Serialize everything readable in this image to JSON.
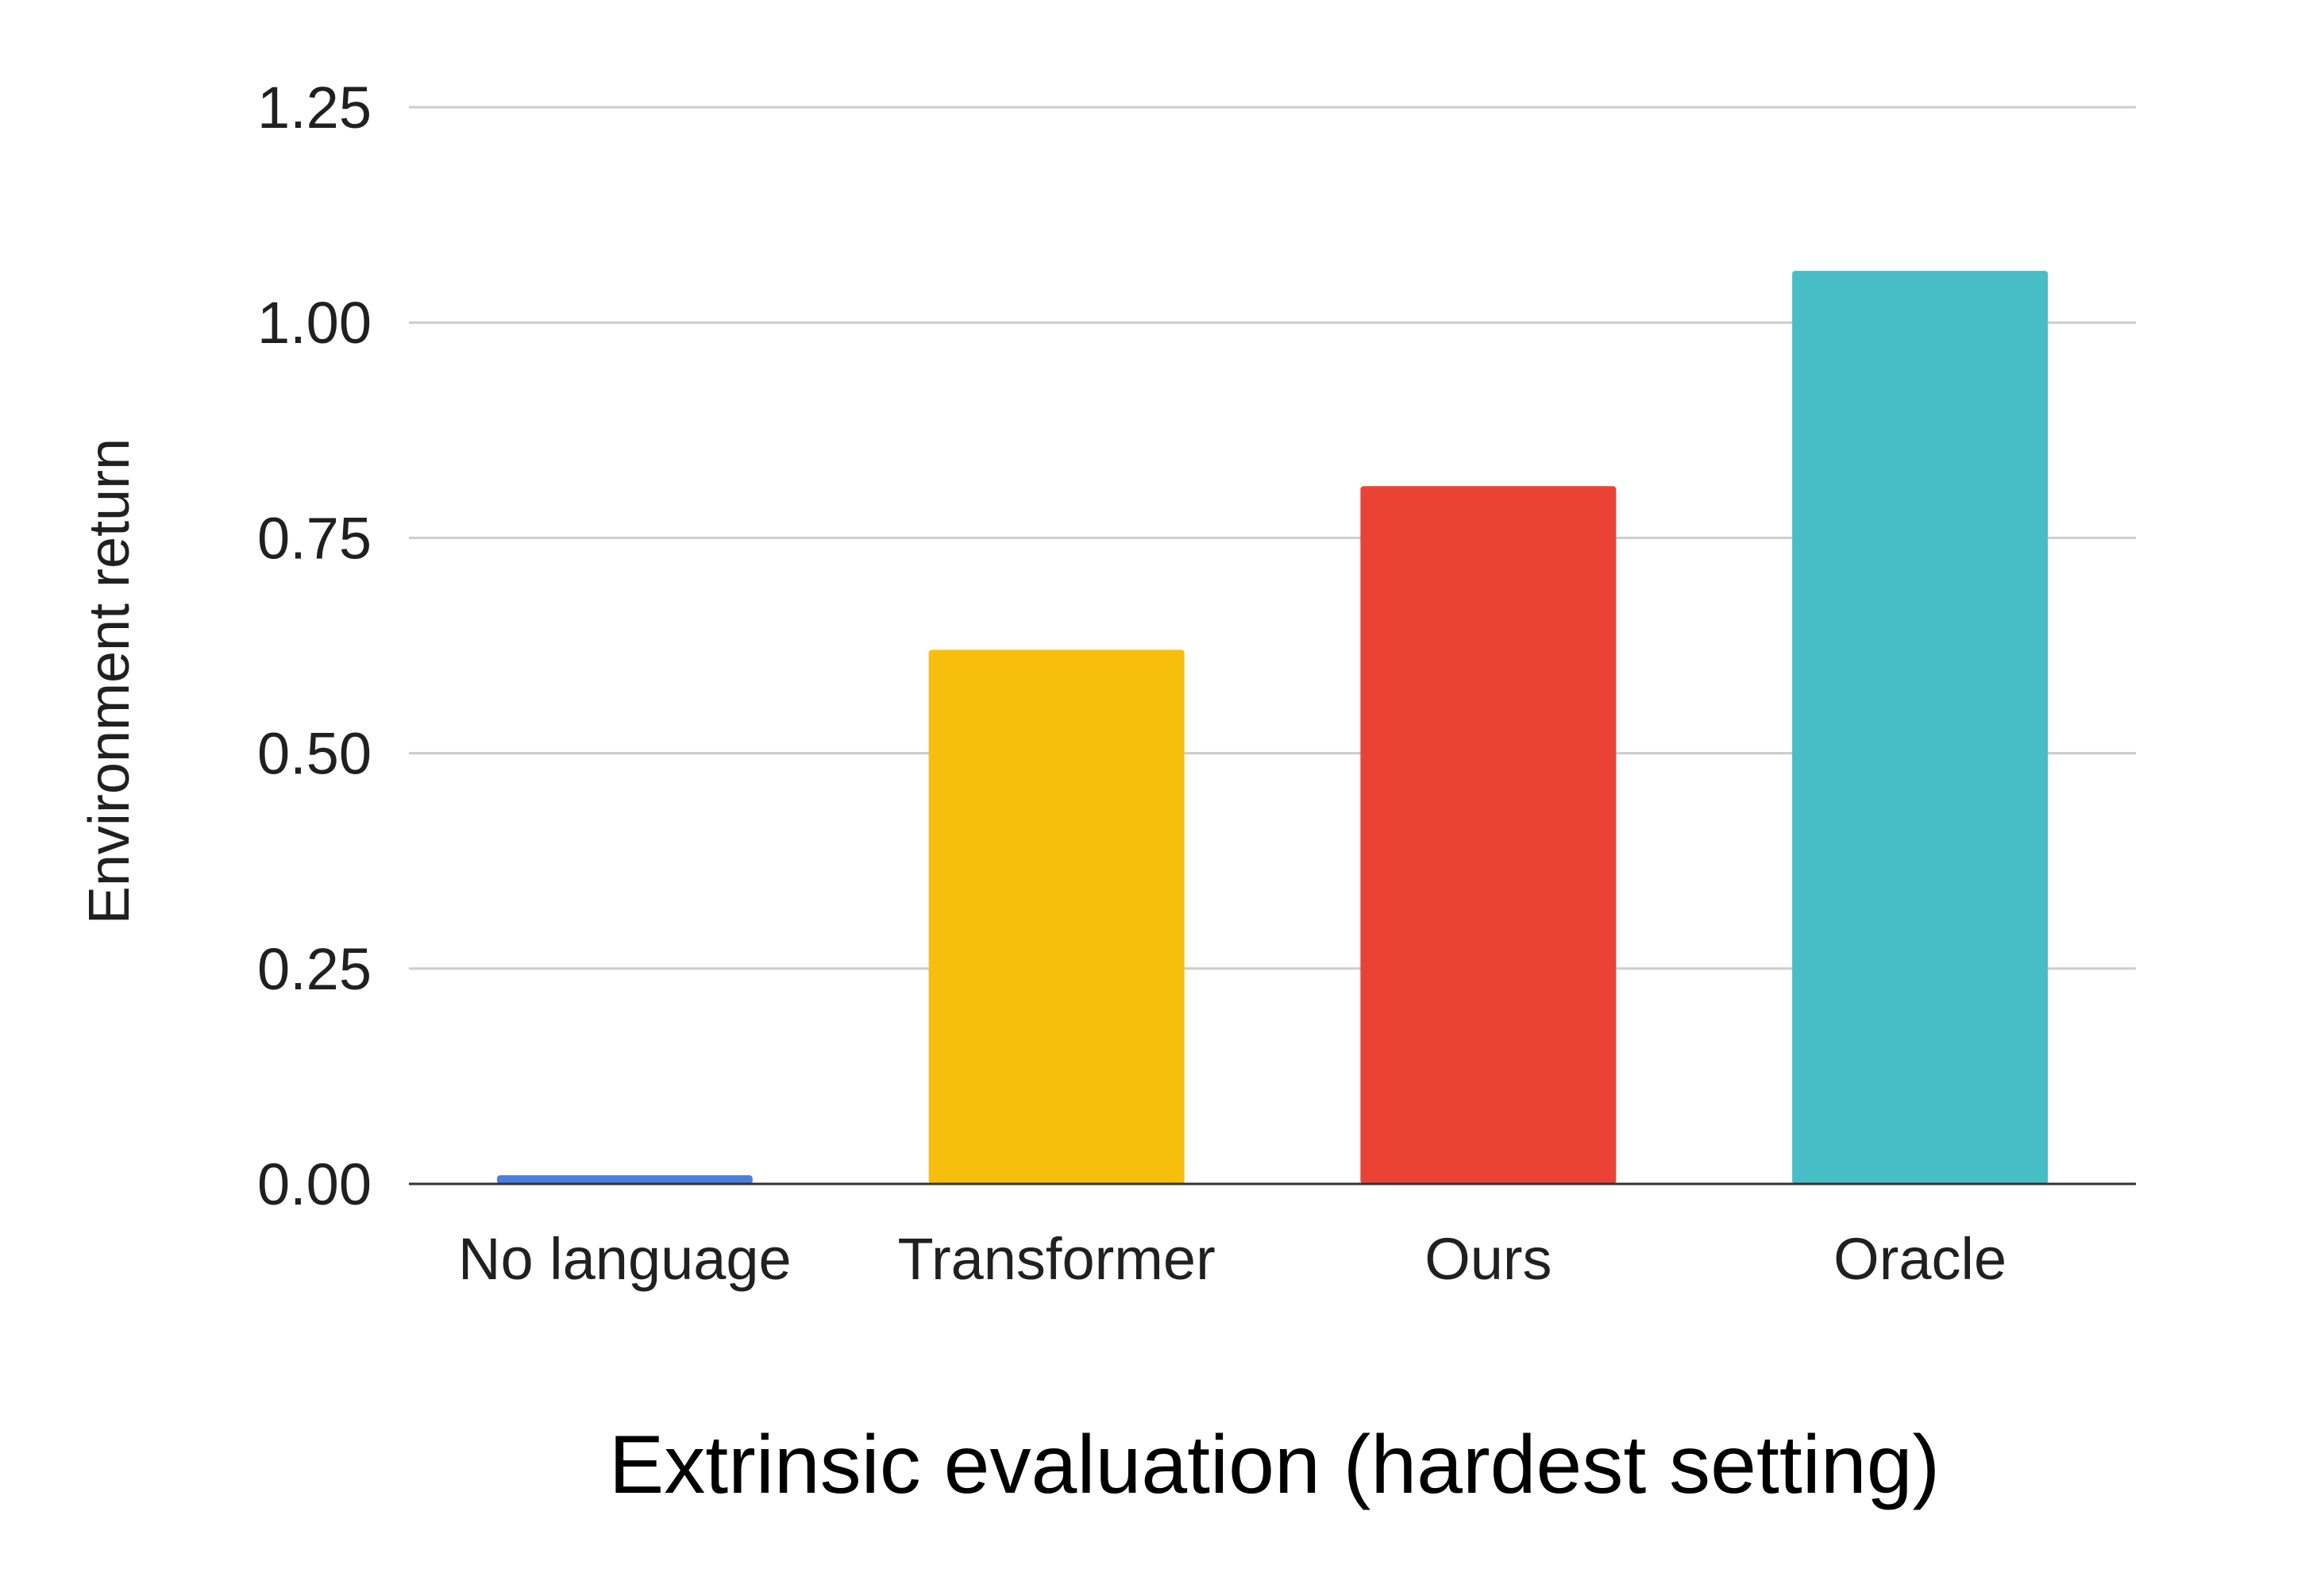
{
  "chart_data": {
    "type": "bar",
    "categories": [
      "No language",
      "Transformer",
      "Ours",
      "Oracle"
    ],
    "values": [
      0.01,
      0.62,
      0.81,
      1.06
    ],
    "colors": [
      "#4A7FE0",
      "#F7BE0B",
      "#EA4335",
      "#47BDC6"
    ],
    "title": "",
    "xlabel": "Extrinsic evaluation (hardest setting)",
    "ylabel": "Environment return",
    "ylim": [
      0,
      1.25
    ],
    "yticks": [
      "0.00",
      "0.25",
      "0.50",
      "0.75",
      "1.00",
      "1.25"
    ],
    "grid": true,
    "legend": "none"
  }
}
